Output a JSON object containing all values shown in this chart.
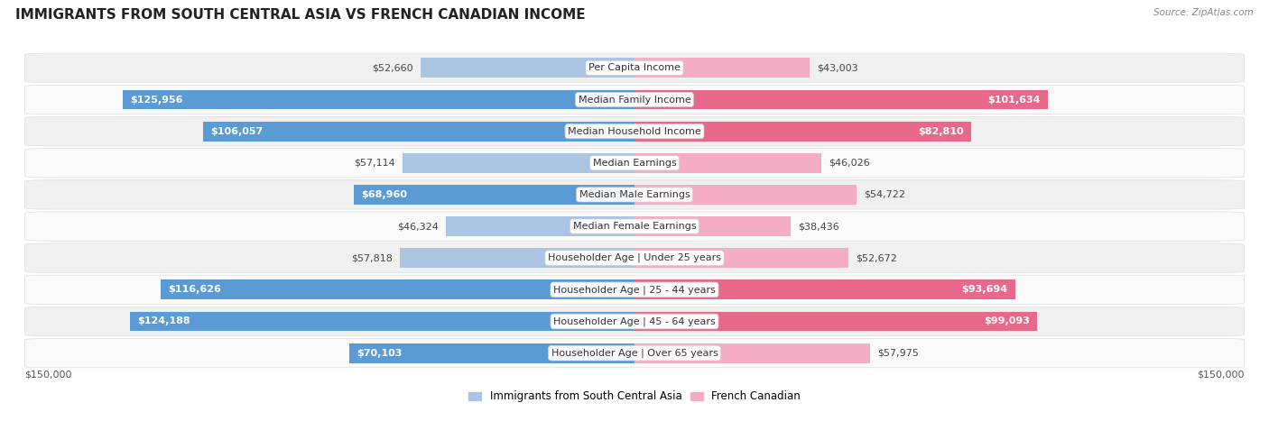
{
  "title": "IMMIGRANTS FROM SOUTH CENTRAL ASIA VS FRENCH CANADIAN INCOME",
  "source": "Source: ZipAtlas.com",
  "categories": [
    "Per Capita Income",
    "Median Family Income",
    "Median Household Income",
    "Median Earnings",
    "Median Male Earnings",
    "Median Female Earnings",
    "Householder Age | Under 25 years",
    "Householder Age | 25 - 44 years",
    "Householder Age | 45 - 64 years",
    "Householder Age | Over 65 years"
  ],
  "left_values": [
    52660,
    125956,
    106057,
    57114,
    68960,
    46324,
    57818,
    116626,
    124188,
    70103
  ],
  "right_values": [
    43003,
    101634,
    82810,
    46026,
    54722,
    38436,
    52672,
    93694,
    99093,
    57975
  ],
  "left_labels": [
    "$52,660",
    "$125,956",
    "$106,057",
    "$57,114",
    "$68,960",
    "$46,324",
    "$57,818",
    "$116,626",
    "$124,188",
    "$70,103"
  ],
  "right_labels": [
    "$43,003",
    "$101,634",
    "$82,810",
    "$46,026",
    "$54,722",
    "$38,436",
    "$52,672",
    "$93,694",
    "$99,093",
    "$57,975"
  ],
  "max_value": 150000,
  "dark_threshold": 65000,
  "left_color_light": "#aac4e2",
  "left_color_dark": "#5b9bd5",
  "right_color_light": "#f5adc6",
  "right_color_dark": "#e8688a",
  "bar_height": 0.62,
  "background_color": "#ffffff",
  "row_bg_even": "#f0f0f0",
  "row_bg_odd": "#fafafa",
  "legend_left": "Immigrants from South Central Asia",
  "legend_right": "French Canadian",
  "x_tick_label": "$150,000",
  "title_fontsize": 11,
  "label_fontsize": 8,
  "cat_fontsize": 8
}
